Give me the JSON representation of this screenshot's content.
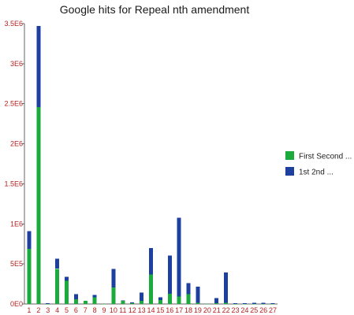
{
  "chart_data": {
    "type": "bar",
    "stacked": true,
    "title": "Google hits for Repeal nth amendment",
    "xlabel": "",
    "ylabel": "",
    "categories": [
      "1",
      "2",
      "3",
      "4",
      "5",
      "6",
      "7",
      "8",
      "9",
      "10",
      "11",
      "12",
      "13",
      "14",
      "15",
      "16",
      "17",
      "18",
      "19",
      "20",
      "21",
      "22",
      "23",
      "24",
      "25",
      "26",
      "27"
    ],
    "series": [
      {
        "name": "First Second ...",
        "color": "#1aab3c",
        "values": [
          690000,
          2460000,
          5000,
          440000,
          290000,
          60000,
          40000,
          85000,
          2000,
          205000,
          40000,
          12000,
          40000,
          370000,
          50000,
          130000,
          95000,
          125000,
          15000,
          2000,
          10000,
          15000,
          2000,
          2000,
          2000,
          2000,
          2000
        ]
      },
      {
        "name": "1st 2nd ...",
        "color": "#1c3fa0",
        "values": [
          220000,
          1010000,
          5000,
          125000,
          50000,
          65000,
          0,
          30000,
          0,
          235000,
          5000,
          10000,
          105000,
          330000,
          35000,
          475000,
          980000,
          135000,
          200000,
          0,
          65000,
          380000,
          8000,
          8000,
          15000,
          15000,
          8000
        ]
      }
    ],
    "ylim": [
      0,
      3500000
    ],
    "y_ticks": [
      {
        "value": 0,
        "label": "0E0"
      },
      {
        "value": 500000,
        "label": "5E5"
      },
      {
        "value": 1000000,
        "label": "1E6"
      },
      {
        "value": 1500000,
        "label": "1.5E6"
      },
      {
        "value": 2000000,
        "label": "2E6"
      },
      {
        "value": 2500000,
        "label": "2.5E6"
      },
      {
        "value": 3000000,
        "label": "3E6"
      },
      {
        "value": 3500000,
        "label": "3.5E6"
      }
    ],
    "legend": {
      "position": "right",
      "entries": [
        {
          "label": "First Second ...",
          "color": "#1aab3c"
        },
        {
          "label": "1st 2nd ...",
          "color": "#1c3fa0"
        }
      ]
    },
    "grid": false,
    "tick_label_color": "#b22222"
  }
}
